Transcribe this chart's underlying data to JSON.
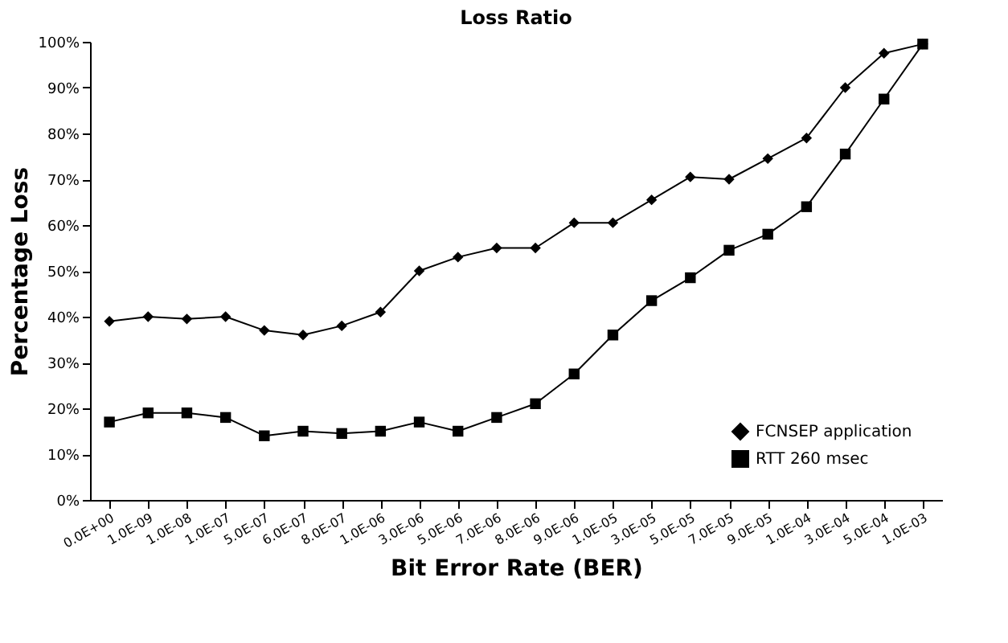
{
  "chart_data": {
    "type": "line",
    "title": "Loss Ratio",
    "xlabel": "Bit Error Rate (BER)",
    "ylabel": "Percentage Loss",
    "categories": [
      "0.0E+00",
      "1.0E-09",
      "1.0E-08",
      "1.0E-07",
      "5.0E-07",
      "6.0E-07",
      "8.0E-07",
      "1.0E-06",
      "3.0E-06",
      "5.0E-06",
      "7.0E-06",
      "8.0E-06",
      "9.0E-06",
      "1.0E-05",
      "3.0E-05",
      "5.0E-05",
      "7.0E-05",
      "9.0E-05",
      "1.0E-04",
      "3.0E-04",
      "5.0E-04",
      "1.0E-03"
    ],
    "series": [
      {
        "name": "FCNSEP application",
        "color": "#000000",
        "marker": "diamond",
        "values": [
          39,
          40,
          39.5,
          40,
          37,
          36,
          38,
          41,
          50,
          53,
          55,
          55,
          60.5,
          60.5,
          65.5,
          70.5,
          70,
          74.5,
          79,
          90,
          97.5,
          99.5
        ]
      },
      {
        "name": "RTT 260 msec",
        "color": "#000000",
        "marker": "square",
        "values": [
          17,
          19,
          19,
          18,
          14,
          15,
          14.5,
          15,
          17,
          15,
          18,
          21,
          27.5,
          36,
          43.5,
          48.5,
          54.5,
          58,
          64,
          75.5,
          87.5,
          99.5
        ]
      }
    ],
    "ylim": [
      0,
      100
    ],
    "yticks": [
      {
        "value": 0,
        "label": "0%"
      },
      {
        "value": 10,
        "label": "10%"
      },
      {
        "value": 20,
        "label": "20%"
      },
      {
        "value": 30,
        "label": "30%"
      },
      {
        "value": 40,
        "label": "40%"
      },
      {
        "value": 50,
        "label": "50%"
      },
      {
        "value": 60,
        "label": "60%"
      },
      {
        "value": 70,
        "label": "70%"
      },
      {
        "value": 80,
        "label": "80%"
      },
      {
        "value": 90,
        "label": "90%"
      },
      {
        "value": 100,
        "label": "100%"
      }
    ],
    "grid": false,
    "legend": "bottom right",
    "line_style": "solid"
  }
}
